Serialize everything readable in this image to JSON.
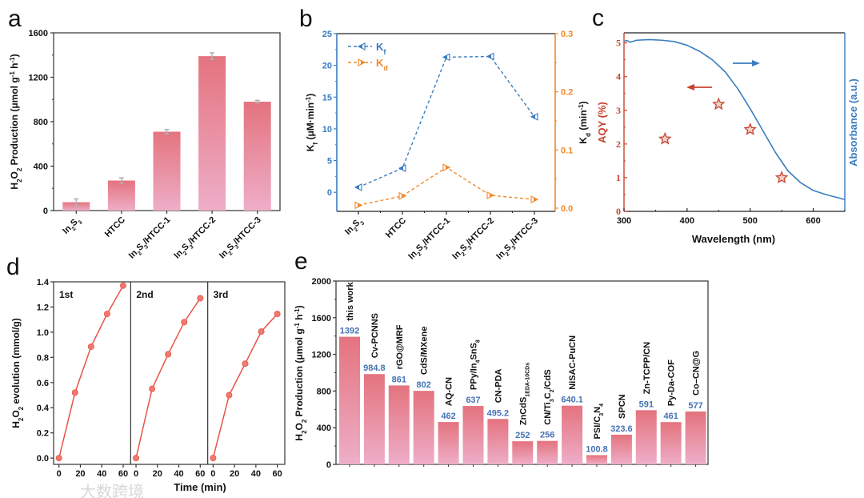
{
  "watermark": "大数跨境",
  "chart_data": [
    {
      "panel": "a",
      "type": "bar",
      "categories": [
        "In_{2}S_{3}",
        "HTCC",
        "In_{2}S_{3}/HTCC-1",
        "In_{2}S_{3}/HTCC-2",
        "In_{2}S_{3}/HTCC-3"
      ],
      "values": [
        75,
        270,
        710,
        1390,
        980
      ],
      "errors": [
        30,
        25,
        20,
        30,
        12
      ],
      "ylabel": "H_{2}O_{2} Production (μmol g^{-1} h^{-1})",
      "ylim": [
        0,
        1600
      ],
      "yticks": [
        "0",
        "400",
        "800",
        "1200",
        "1600"
      ],
      "colors": {
        "bar_top": "#e4737e",
        "bar_bottom": "#eeaec8",
        "error": "#b0b0b0"
      }
    },
    {
      "panel": "b",
      "type": "line",
      "categories": [
        "In_{2}S_{3}",
        "HTCC",
        "In_{2}S_{3}/HTCC-1",
        "In_{2}S_{3}/HTCC-2",
        "In_{2}S_{3}/HTCC-3"
      ],
      "series": [
        {
          "name": "K_{f}",
          "axis": "left",
          "values": [
            0.8,
            3.8,
            21.3,
            21.4,
            11.9
          ],
          "color": "#3a7dbf"
        },
        {
          "name": "K_{d}",
          "axis": "right",
          "values": [
            0.005,
            0.021,
            0.07,
            0.022,
            0.015
          ],
          "color": "#f0882a"
        }
      ],
      "ylabel": "K_{f} (μM·min^{-1})",
      "ylabel_right": "K_{d} (min^{-1})",
      "ylim": [
        -3,
        25
      ],
      "yticks": [
        "0",
        "5",
        "10",
        "15",
        "20",
        "25"
      ],
      "ylim_right": [
        -0.0055,
        0.3
      ],
      "yticks_right": [
        "0.0",
        "0.1",
        "0.2",
        "0.3"
      ],
      "legend": "top-left"
    },
    {
      "panel": "c",
      "type": "scatter",
      "xlabel": "Wavelength (nm)",
      "ylabel": "AQY (%)",
      "ylabel_right": "Absorbance (a.u.)",
      "xlim": [
        300,
        650
      ],
      "xticks": [
        "300",
        "400",
        "500",
        "600"
      ],
      "ylim": [
        0,
        5.3
      ],
      "yticks": [
        "0",
        "1",
        "2",
        "3",
        "4",
        "5"
      ],
      "aqy": {
        "x": [
          365,
          450,
          500,
          550
        ],
        "y": [
          2.15,
          3.18,
          2.43,
          1.0
        ],
        "color": "#c8442f"
      },
      "absorbance": {
        "x": [
          300,
          305,
          310,
          320,
          340,
          360,
          380,
          400,
          420,
          440,
          460,
          480,
          500,
          520,
          540,
          560,
          580,
          600,
          620,
          650
        ],
        "y": [
          5.05,
          5.07,
          5.02,
          5.08,
          5.1,
          5.08,
          5.04,
          4.93,
          4.75,
          4.5,
          4.15,
          3.65,
          3.05,
          2.4,
          1.75,
          1.2,
          0.85,
          0.62,
          0.5,
          0.35
        ],
        "color": "#3a7dbf"
      }
    },
    {
      "panel": "d",
      "type": "line",
      "ylabel": "H_{2}O_{2} evolution (mmol/g)",
      "xlabel": "Time (min)",
      "ylim": [
        -0.05,
        1.4
      ],
      "yticks": [
        "0.0",
        "0.2",
        "0.4",
        "0.6",
        "0.8",
        "1.0",
        "1.2",
        "1.4"
      ],
      "xlim": [
        -5,
        67
      ],
      "xticks": [
        "0",
        "20",
        "40",
        "60"
      ],
      "x": [
        0,
        15,
        30,
        45,
        60
      ],
      "series": [
        {
          "name": "1st",
          "values": [
            0,
            0.52,
            0.885,
            1.145,
            1.37
          ]
        },
        {
          "name": "2nd",
          "values": [
            0,
            0.55,
            0.825,
            1.08,
            1.27
          ]
        },
        {
          "name": "3rd",
          "values": [
            0,
            0.5,
            0.75,
            1.005,
            1.145
          ]
        }
      ],
      "color": "#e8534a"
    },
    {
      "panel": "e",
      "type": "bar",
      "categories": [
        "this work",
        "Cv-PCNNS",
        "rGO@MRF",
        "CdS/MXene",
        "AQ-CN",
        "PPy/In_{4}SnS_{8}",
        "CN-PDA",
        "ZnCdS_{1EDA-10CDs}",
        "CN/Ti_{3}C_{2}/CdS",
        "NiSAC-PuCN",
        "PSI/C_{3}N_{4}",
        "SPCN",
        "Zn-TCPP/CN",
        "Py-Da-COF",
        "Co–CN@G"
      ],
      "values": [
        1392,
        984.8,
        861,
        802,
        462,
        637,
        495.2,
        252,
        256,
        640.1,
        100.8,
        323.6,
        591,
        461,
        577
      ],
      "value_labels": [
        "1392",
        "984.8",
        "861",
        "802",
        "462",
        "637",
        "495.2",
        "252",
        "256",
        "640.1",
        "100.8",
        "323.6",
        "591",
        "461",
        "577"
      ],
      "ylabel": "H_{2}O_{2} Production (μmol g^{-1} h^{-1})",
      "ylim": [
        0,
        2000
      ],
      "yticks": [
        "0",
        "400",
        "800",
        "1200",
        "1600",
        "2000"
      ],
      "colors": {
        "value_label": "#4672b4"
      }
    }
  ],
  "panel_labels": [
    "a",
    "b",
    "c",
    "d",
    "e"
  ]
}
